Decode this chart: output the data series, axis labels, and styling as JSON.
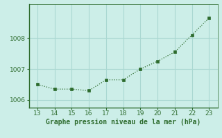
{
  "x": [
    13,
    14,
    15,
    16,
    17,
    18,
    19,
    20,
    21,
    22,
    23
  ],
  "y": [
    1006.5,
    1006.35,
    1006.35,
    1006.3,
    1006.65,
    1006.65,
    1007.0,
    1007.25,
    1007.55,
    1008.1,
    1008.65
  ],
  "line_color": "#2d6b2d",
  "marker": "s",
  "marker_size": 2.5,
  "xlabel": "Graphe pression niveau de la mer (hPa)",
  "xlabel_color": "#2d6b2d",
  "background_color": "#cceee8",
  "grid_color": "#aad8d2",
  "xlim": [
    12.5,
    23.5
  ],
  "ylim": [
    1005.75,
    1009.1
  ],
  "xticks": [
    13,
    14,
    15,
    16,
    17,
    18,
    19,
    20,
    21,
    22,
    23
  ],
  "ytick_values": [
    1006,
    1007,
    1008
  ],
  "tick_color": "#2d6b2d",
  "tick_fontsize": 6.5,
  "xlabel_fontsize": 7,
  "spine_color": "#2d6b2d",
  "spine_bottom_color": "#2d6b2d"
}
